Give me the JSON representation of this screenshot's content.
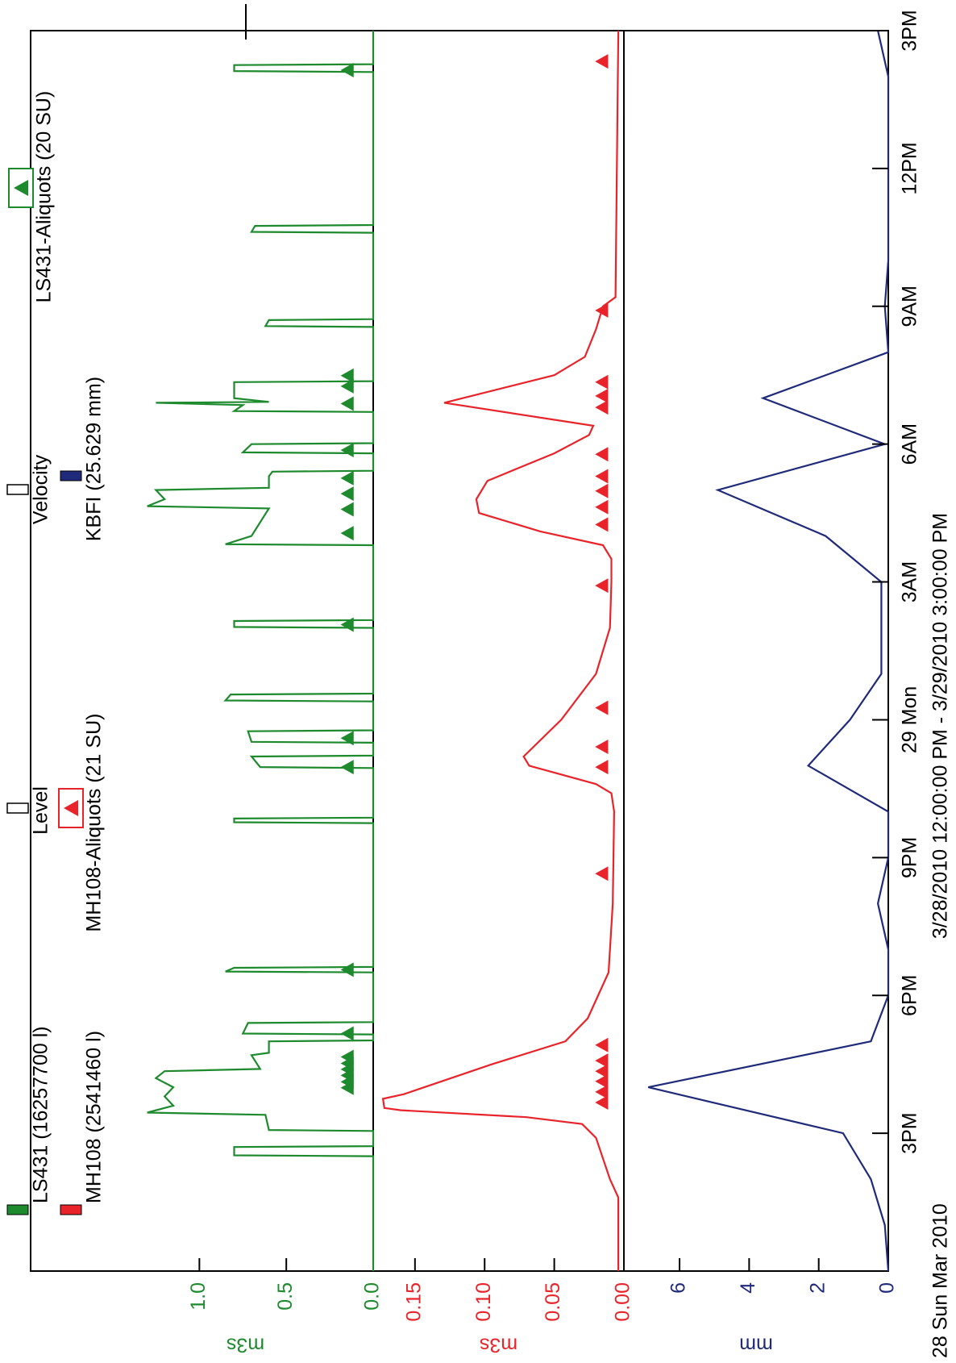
{
  "chart_data": [
    {
      "type": "line",
      "ylabel": "m3s",
      "color": "#1e8a2e",
      "ylim": [
        0,
        1.47
      ],
      "yticks": [
        {
          "value": 0,
          "label": "0.0"
        },
        0.5,
        {
          "value": 1,
          "label": "1.0"
        }
      ],
      "series": [
        {
          "name": "LS431 (16257700 l)",
          "color": "#1e8a2e",
          "x": [
            0,
            2.5,
            2.52,
            2.7,
            2.72,
            3.05,
            3.07,
            3.4,
            3.45,
            3.6,
            3.8,
            4.0,
            4.2,
            4.35,
            4.4,
            4.7,
            4.75,
            5.0,
            5.02,
            5.15,
            5.17,
            5.4,
            5.42,
            6.5,
            6.52,
            6.6,
            6.62,
            9.75,
            9.77,
            9.85,
            9.87,
            10.95,
            10.97,
            11.2,
            11.22,
            11.5,
            11.52,
            11.75,
            11.77,
            12.4,
            12.42,
            12.55,
            12.57,
            14.0,
            14.02,
            14.15,
            14.17,
            15.8,
            15.82,
            16.0,
            16.3,
            16.6,
            16.65,
            16.8,
            17.0,
            17.05,
            17.3,
            17.4,
            17.42,
            17.8,
            17.82,
            18.0,
            18.02,
            18.7,
            18.72,
            18.85,
            18.9,
            18.92,
            19.0,
            19.35,
            19.37,
            20.55,
            20.57,
            20.7,
            20.72,
            22.6,
            22.62,
            22.75,
            22.77,
            26.1,
            26.12,
            26.25,
            26.27,
            27
          ],
          "values": [
            0,
            0,
            0.8,
            0.8,
            0,
            0,
            0.6,
            0.62,
            1.3,
            1.15,
            1.2,
            1.15,
            1.25,
            1.2,
            0.65,
            0.7,
            0.6,
            0.6,
            0,
            0,
            0.75,
            0.72,
            0,
            0,
            0.85,
            0.8,
            0,
            0,
            0.8,
            0.8,
            0,
            0,
            0.65,
            0.7,
            0,
            0,
            0.7,
            0.72,
            0,
            0,
            0.85,
            0.82,
            0,
            0,
            0.8,
            0.8,
            0,
            0,
            0.85,
            0.7,
            0.65,
            0.6,
            1.3,
            1.2,
            1.25,
            0.6,
            0.6,
            0.58,
            0,
            0,
            0.75,
            0.7,
            0,
            0,
            0.8,
            0.75,
            1.25,
            0.6,
            0.8,
            0.8,
            0,
            0,
            0.62,
            0.6,
            0,
            0,
            0.7,
            0.68,
            0,
            0,
            0.8,
            0.8,
            0,
            0
          ]
        },
        {
          "name": "LS431-Aliquots (20 SU)",
          "color": "#1e8a2e",
          "marker": "triangle",
          "x": [
            3.99,
            4.12,
            4.26,
            4.39,
            4.52,
            4.66,
            5.17,
            6.56,
            10.97,
            11.6,
            14.07,
            16.06,
            16.58,
            16.92,
            17.26,
            17.87,
            18.88,
            19.26,
            19.49,
            26.14
          ],
          "values": [
            0.15,
            0.15,
            0.15,
            0.15,
            0.15,
            0.15,
            0.15,
            0.15,
            0.15,
            0.15,
            0.15,
            0.15,
            0.15,
            0.15,
            0.15,
            0.15,
            0.15,
            0.15,
            0.15,
            0.15
          ]
        }
      ]
    },
    {
      "type": "line",
      "ylabel": "m3s",
      "color": "#e8242a",
      "ylim": [
        0,
        0.18
      ],
      "yticks": [
        {
          "value": 0,
          "label": "0.00"
        },
        0.05,
        {
          "value": 0.1,
          "label": "0.10"
        },
        0.15
      ],
      "series": [
        {
          "name": "MH108 (2541460 l)",
          "color": "#e8242a",
          "x": [
            0,
            1.6,
            2.0,
            2.9,
            3.2,
            3.35,
            3.5,
            3.55,
            3.75,
            3.85,
            4.5,
            5.0,
            5.5,
            6.5,
            8.0,
            10.0,
            10.4,
            10.6,
            11.0,
            11.2,
            12.0,
            13.0,
            14.0,
            15.0,
            15.5,
            15.8,
            16.1,
            16.5,
            16.8,
            17.2,
            17.8,
            18.2,
            18.4,
            18.9,
            19.5,
            19.9,
            20.5,
            21.0,
            21.2,
            27
          ],
          "values": [
            0.004,
            0.004,
            0.01,
            0.02,
            0.03,
            0.07,
            0.16,
            0.172,
            0.173,
            0.158,
            0.095,
            0.042,
            0.026,
            0.011,
            0.008,
            0.007,
            0.009,
            0.02,
            0.068,
            0.072,
            0.045,
            0.02,
            0.01,
            0.009,
            0.009,
            0.015,
            0.06,
            0.104,
            0.106,
            0.098,
            0.05,
            0.025,
            0.022,
            0.129,
            0.05,
            0.028,
            0.02,
            0.015,
            0.006,
            0.004
          ]
        },
        {
          "name": "MH108-Aliquots (21 SU)",
          "color": "#e8242a",
          "marker": "triangle",
          "x": [
            3.67,
            3.9,
            4.13,
            4.35,
            4.58,
            4.92,
            8.65,
            10.97,
            11.41,
            12.26,
            14.92,
            16.25,
            16.63,
            16.98,
            17.3,
            17.78,
            18.8,
            19.05,
            19.35,
            20.91,
            26.33
          ],
          "values": [
            0.016,
            0.016,
            0.016,
            0.016,
            0.016,
            0.016,
            0.016,
            0.016,
            0.016,
            0.016,
            0.016,
            0.016,
            0.016,
            0.016,
            0.016,
            0.016,
            0.016,
            0.016,
            0.016,
            0.016,
            0.016
          ]
        }
      ]
    },
    {
      "type": "line",
      "ylabel": "mm",
      "color": "#1f2a7a",
      "ylim": [
        0,
        7.6
      ],
      "yticks": [
        0,
        2,
        4,
        6
      ],
      "xlim": [
        0,
        27
      ],
      "xticks": [
        {
          "value": 3,
          "label": "3PM"
        },
        {
          "value": 6,
          "label": "6PM"
        },
        {
          "value": 9,
          "label": "9PM"
        },
        {
          "value": 12,
          "label": "29 Mon"
        },
        {
          "value": 15,
          "label": "3AM"
        },
        {
          "value": 18,
          "label": "6AM"
        },
        {
          "value": 21,
          "label": "9AM"
        },
        {
          "value": 24,
          "label": "12PM"
        },
        {
          "value": 27,
          "label": "3PM"
        }
      ],
      "x_start_label": "28 Sun Mar 2010",
      "xlabel": "3/28/2010 12:00:00 PM - 3/29/2010 3:00:00 PM",
      "series": [
        {
          "name": "KBFI (25.629 mm)",
          "color": "#1f2a7a",
          "x": [
            0,
            1,
            2,
            3,
            4,
            5,
            6,
            7,
            8,
            9,
            10,
            11,
            12,
            13,
            14,
            15,
            16,
            17,
            18,
            19,
            20,
            21,
            22,
            23,
            24,
            25,
            26,
            27
          ],
          "values": [
            0,
            0.1,
            0.5,
            1.3,
            6.9,
            0.5,
            0,
            0,
            0.3,
            0,
            0,
            2.3,
            1.1,
            0.2,
            0.2,
            0.2,
            1.8,
            4.9,
            0.1,
            3.6,
            0,
            0.1,
            0,
            0,
            0,
            0,
            0,
            0.3
          ]
        }
      ]
    }
  ],
  "legend_labels": [
    "Level",
    "Velocity"
  ]
}
